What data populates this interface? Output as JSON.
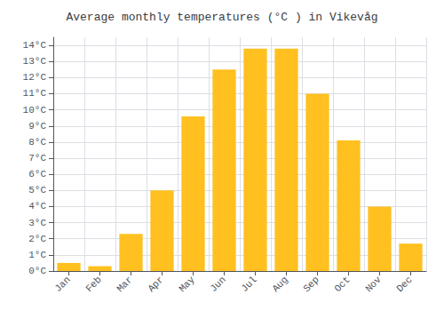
{
  "chart_data": {
    "type": "bar",
    "title": "Average monthly temperatures (°C ) in Vikevåg",
    "categories": [
      "Jan",
      "Feb",
      "Mar",
      "Apr",
      "May",
      "Jun",
      "Jul",
      "Aug",
      "Sep",
      "Oct",
      "Nov",
      "Dec"
    ],
    "values": [
      0.5,
      0.3,
      2.3,
      5.0,
      9.6,
      12.5,
      13.8,
      13.8,
      11.0,
      8.1,
      4.0,
      1.7
    ],
    "color": "#FFC020",
    "ylim": [
      0,
      14.5
    ],
    "yticks": [
      {
        "value": 0,
        "label": "0°C"
      },
      {
        "value": 1,
        "label": "1°C"
      },
      {
        "value": 2,
        "label": "2°C"
      },
      {
        "value": 3,
        "label": "3°C"
      },
      {
        "value": 4,
        "label": "4°C"
      },
      {
        "value": 5,
        "label": "5°C"
      },
      {
        "value": 6,
        "label": "6°C"
      },
      {
        "value": 7,
        "label": "7°C"
      },
      {
        "value": 8,
        "label": "8°C"
      },
      {
        "value": 9,
        "label": "9°C"
      },
      {
        "value": 10,
        "label": "10°C"
      },
      {
        "value": 11,
        "label": "11°C"
      },
      {
        "value": 12,
        "label": "12°C"
      },
      {
        "value": 13,
        "label": "13°C"
      },
      {
        "value": 14,
        "label": "14°C"
      }
    ],
    "grid": true
  }
}
